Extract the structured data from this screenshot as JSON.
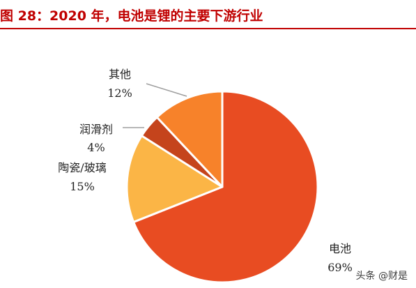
{
  "header": {
    "title": "图 28：2020 年，电池是锂的主要下游行业"
  },
  "chart_data": {
    "type": "pie",
    "title": "图 28：2020 年，电池是锂的主要下游行业",
    "start": "12 o'clock",
    "direction": "clockwise",
    "slices": [
      {
        "name": "电池",
        "value": 69,
        "label": "69%",
        "color": "#e84c22"
      },
      {
        "name": "陶瓷/玻璃",
        "value": 15,
        "label": "15%",
        "color": "#fbb546"
      },
      {
        "name": "润滑剂",
        "value": 4,
        "label": "4%",
        "color": "#c5441c"
      },
      {
        "name": "其他",
        "value": 12,
        "label": "12%",
        "color": "#f7822a"
      }
    ]
  },
  "watermark": {
    "text": "头条 @财是"
  },
  "colors": {
    "title": "#c00000",
    "leader": "#9e9e9e",
    "slice_edge": "#ffffff"
  }
}
